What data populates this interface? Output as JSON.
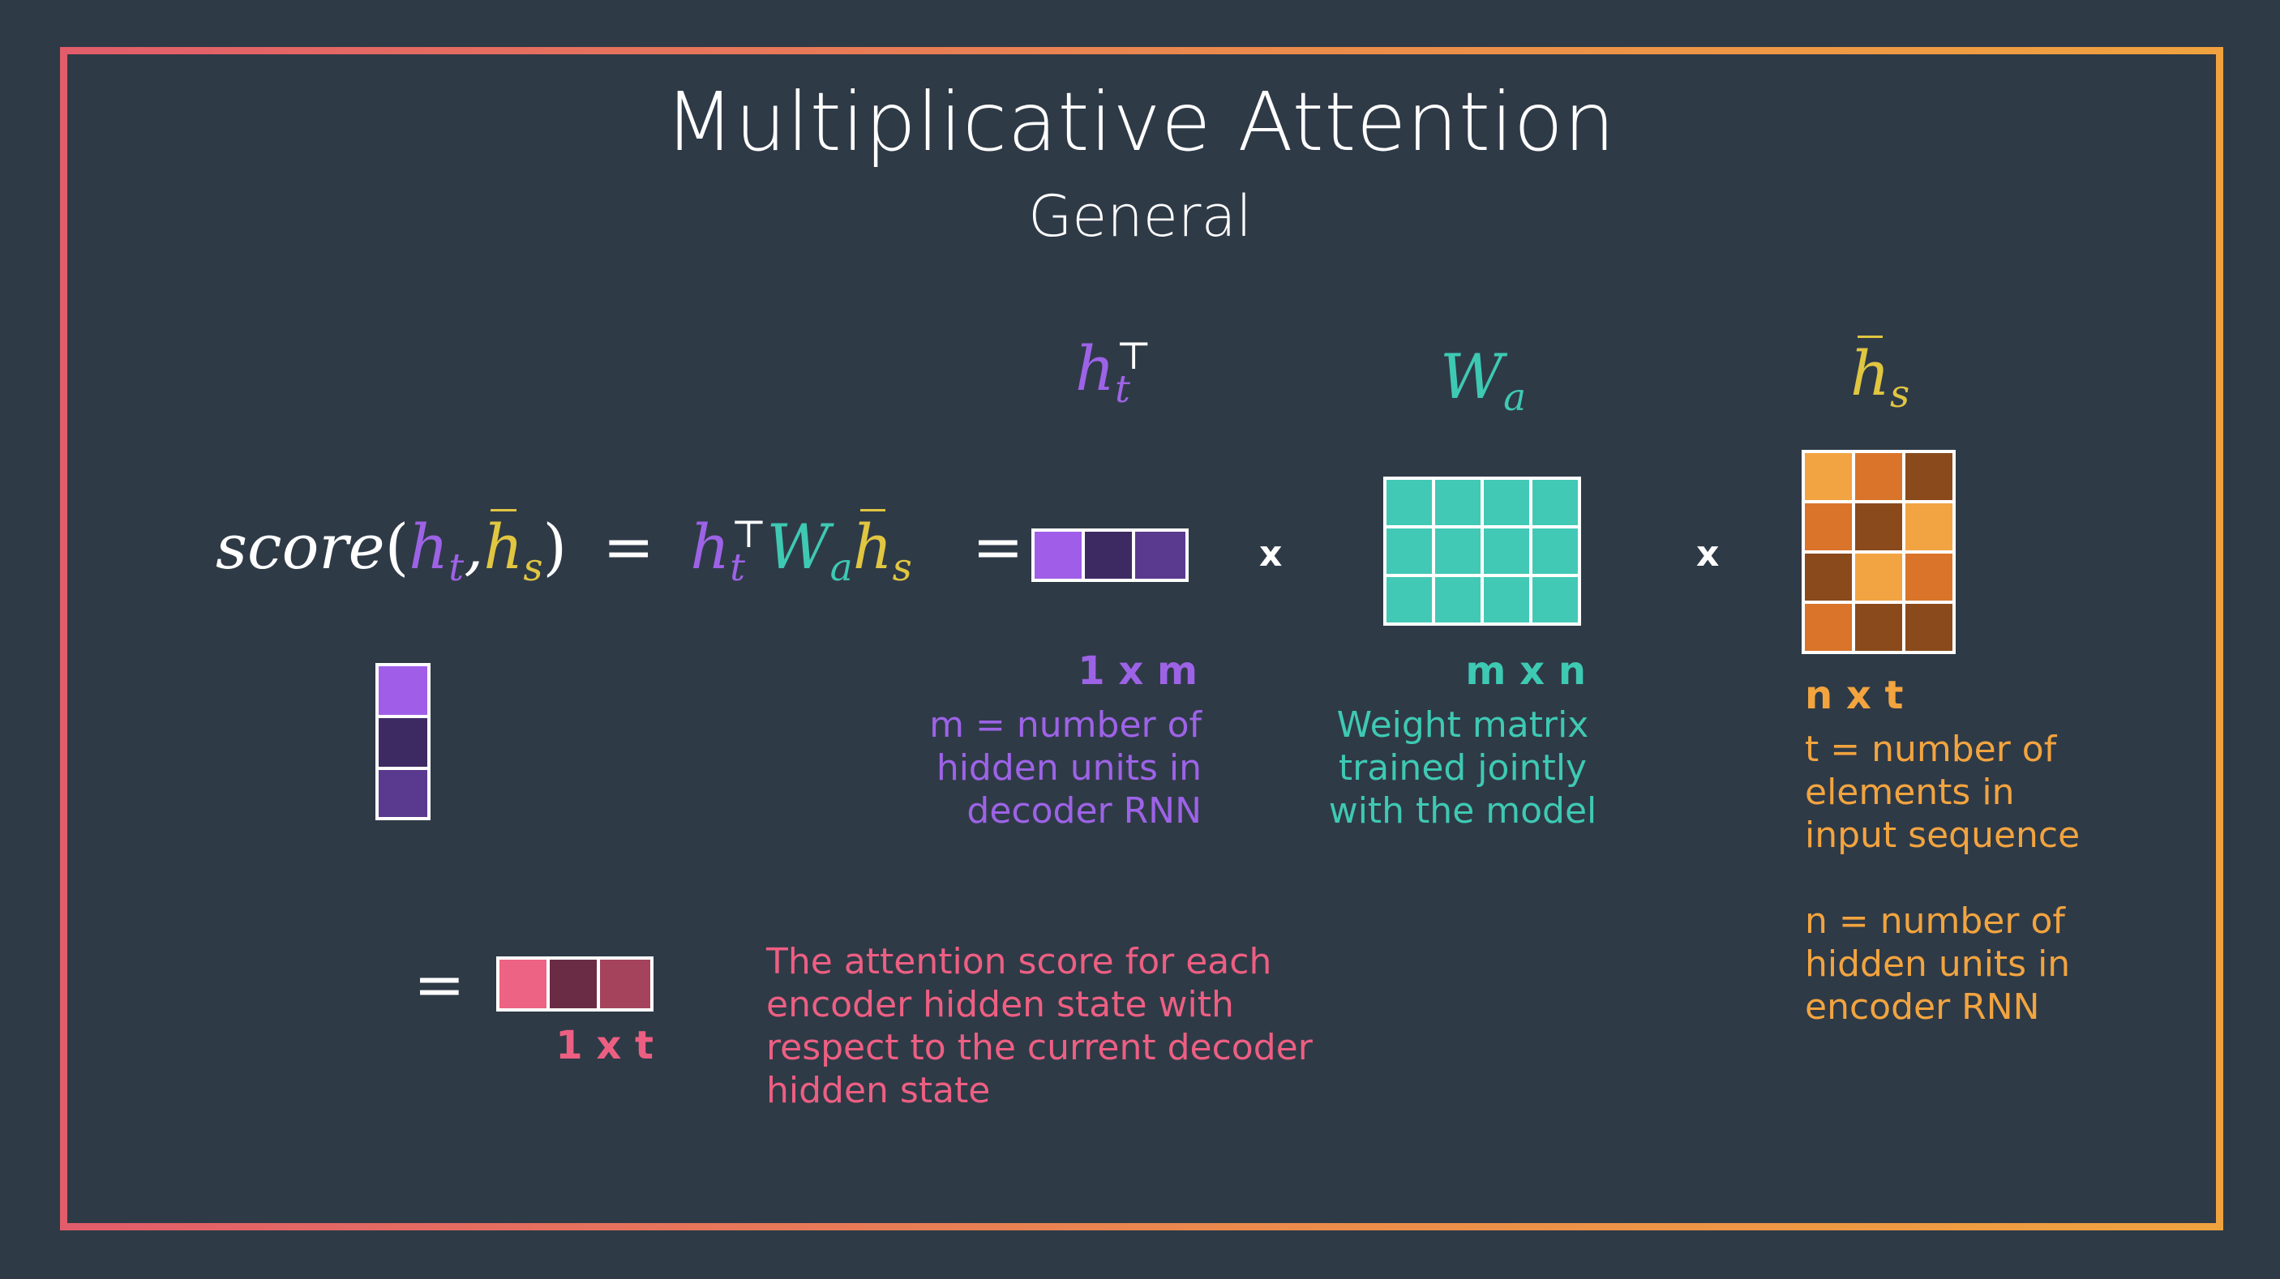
{
  "title": "Multiplicative Attention",
  "subtitle": "General",
  "formula": {
    "score_word": "score",
    "lparen": "(",
    "h": "h",
    "t": "t",
    "comma": ",",
    "s": "s",
    "rparen": ")",
    "equals": "=",
    "transpose": "⊤",
    "W": "W",
    "a": "a"
  },
  "operators": {
    "times": "x",
    "equals": "="
  },
  "decoder_vector": {
    "dims": "1 x m",
    "description": [
      "m = number of",
      "hidden units in",
      "decoder RNN"
    ]
  },
  "weight_matrix": {
    "dims": "m x n",
    "description": [
      "Weight matrix",
      "trained jointly",
      "with the model"
    ]
  },
  "encoder_matrix": {
    "dims": "n x t",
    "description": [
      "t = number of",
      "elements in",
      "input sequence",
      "",
      "n = number of",
      "hidden units in",
      "encoder RNN"
    ]
  },
  "result": {
    "dims": "1 x t",
    "description": [
      "The attention score for each",
      "encoder hidden state with",
      "respect to the current decoder",
      "hidden state"
    ]
  },
  "colors": {
    "background": "#2f3a47",
    "purple": "#9d63e6",
    "teal": "#3ec9b3",
    "yellow": "#e0c641",
    "pink": "#ed5f82",
    "orange": "#f2a43f",
    "decoder_cells": [
      "#a05ee8",
      "#3e2a63",
      "#5a3a8e"
    ],
    "column_cells": [
      "#a05ee8",
      "#3e2a63",
      "#5a3a8e"
    ],
    "teal_cell": "#42c9b5",
    "encoder_cells": [
      [
        "#f2a443",
        "#d9742a",
        "#8a4a1c"
      ],
      [
        "#d9742a",
        "#8a4a1c",
        "#f2a443"
      ],
      [
        "#8a4a1c",
        "#f2a443",
        "#d9742a"
      ],
      [
        "#d9742a",
        "#8a4a1c",
        "#8a4a1c"
      ]
    ],
    "result_cells": [
      "#ec6384",
      "#6a2c44",
      "#a5435d"
    ]
  }
}
